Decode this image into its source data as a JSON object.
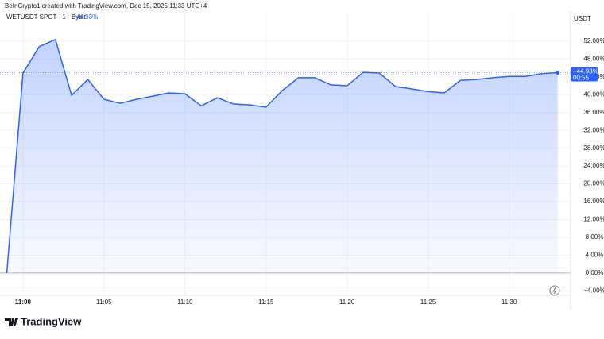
{
  "header": "BeInCrypto1 created with TradingView.com, Dec 15, 2025 11:33 UTC+4",
  "chart_data": {
    "type": "area",
    "title": "WETUSDT SPOT · 1 · Bybit",
    "legend_value": "44.93%",
    "currency": "USDT",
    "last_label": "+44.93%",
    "countdown": "00:55",
    "color": "#2962ff",
    "grid": true,
    "x": [
      -1,
      0,
      1,
      2,
      3,
      4,
      5,
      6,
      7,
      8,
      9,
      10,
      11,
      12,
      13,
      14,
      15,
      16,
      17,
      18,
      19,
      20,
      21,
      22,
      23,
      24,
      25,
      26,
      27,
      28,
      29,
      30,
      31,
      32,
      33
    ],
    "values": [
      0,
      44.85,
      50.75,
      52.36,
      39.85,
      43.4,
      38.96,
      38.06,
      38.96,
      39.67,
      40.4,
      40.2,
      37.5,
      39.3,
      37.9,
      37.7,
      37.2,
      40.9,
      43.8,
      43.8,
      42.2,
      42.0,
      45.0,
      44.85,
      41.8,
      41.3,
      40.7,
      40.4,
      43.2,
      43.4,
      43.8,
      44.1,
      44.1,
      44.7,
      44.93
    ],
    "xlim": [
      -1.42,
      33.8
    ],
    "xticks": [
      {
        "value": 0,
        "label": "11:00"
      },
      {
        "value": 5,
        "label": "11:05"
      },
      {
        "value": 10,
        "label": "11:10"
      },
      {
        "value": 15,
        "label": "11:15"
      },
      {
        "value": 20,
        "label": "11:20"
      },
      {
        "value": 25,
        "label": "11:25"
      },
      {
        "value": 30,
        "label": "11:30"
      }
    ],
    "ylim": [
      -5,
      55
    ],
    "yticks": [
      {
        "value": 52,
        "label": "52.00%"
      },
      {
        "value": 48,
        "label": "48.00%"
      },
      {
        "value": 44,
        "label": "44.00%"
      },
      {
        "value": 40,
        "label": "40.00%"
      },
      {
        "value": 36,
        "label": "36.00%"
      },
      {
        "value": 32,
        "label": "32.00%"
      },
      {
        "value": 28,
        "label": "28.00%"
      },
      {
        "value": 24,
        "label": "24.00%"
      },
      {
        "value": 20,
        "label": "20.00%"
      },
      {
        "value": 16,
        "label": "16.00%"
      },
      {
        "value": 12,
        "label": "12.00%"
      },
      {
        "value": 8,
        "label": "8.00%"
      },
      {
        "value": 4,
        "label": "4.00%"
      },
      {
        "value": 0,
        "label": "0.00%"
      },
      {
        "value": -4,
        "label": "−4.00%"
      }
    ]
  },
  "footer": "TradingView"
}
